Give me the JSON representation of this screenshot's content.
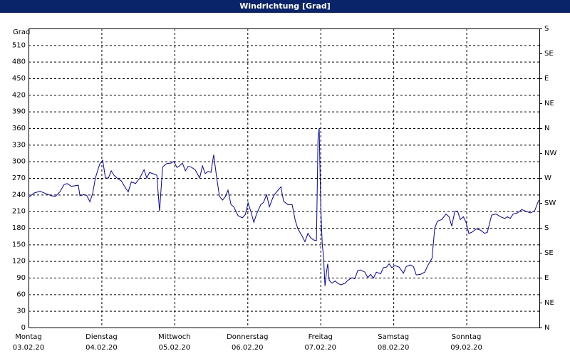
{
  "chart_data": {
    "type": "line",
    "title": "Windrichtung [Grad]",
    "y_label": "Grad",
    "xlim": [
      0,
      168
    ],
    "xticks": [
      {
        "value": 0,
        "label": "Montag",
        "date": "03.02.20"
      },
      {
        "value": 24,
        "label": "Dienstag",
        "date": "04.02.20"
      },
      {
        "value": 48,
        "label": "Mittwoch",
        "date": "05.02.20"
      },
      {
        "value": 72,
        "label": "Donnerstag",
        "date": "06.02.20"
      },
      {
        "value": 96,
        "label": "Freitag",
        "date": "07.02.20"
      },
      {
        "value": 120,
        "label": "Samstag",
        "date": "08.02.20"
      },
      {
        "value": 144,
        "label": "Sonntag",
        "date": "09.02.20"
      }
    ],
    "ylim": [
      0,
      540
    ],
    "yticks": [
      0,
      30,
      60,
      90,
      120,
      150,
      180,
      210,
      240,
      270,
      300,
      330,
      360,
      390,
      420,
      450,
      480,
      510
    ],
    "y2lim": [
      0,
      540
    ],
    "y2ticks": [
      {
        "value": 0,
        "label": "N"
      },
      {
        "value": 45,
        "label": "NE"
      },
      {
        "value": 90,
        "label": "E"
      },
      {
        "value": 135,
        "label": "SE"
      },
      {
        "value": 180,
        "label": "S"
      },
      {
        "value": 225,
        "label": "SW"
      },
      {
        "value": 270,
        "label": "W"
      },
      {
        "value": 315,
        "label": "NW"
      },
      {
        "value": 360,
        "label": "N"
      },
      {
        "value": 405,
        "label": "NE"
      },
      {
        "value": 450,
        "label": "E"
      },
      {
        "value": 495,
        "label": "SE"
      },
      {
        "value": 540,
        "label": "S"
      }
    ],
    "grid": true,
    "series": [
      {
        "color": "#0000c0",
        "x": [
          0,
          1.9,
          3.8,
          5.6,
          7.5,
          8.9,
          10.3,
          11.7,
          12.7,
          14.1,
          16.4,
          16.9,
          18.3,
          19.2,
          20.2,
          21.1,
          22.0,
          23.4,
          24.4,
          25.3,
          26.3,
          27.2,
          28.1,
          29.5,
          30.5,
          31.9,
          32.8,
          33.8,
          35.2,
          36.6,
          38.0,
          38.9,
          39.8,
          40.8,
          42.2,
          43.1,
          44.1,
          45.5,
          46.9,
          47.8,
          48.8,
          49.7,
          50.6,
          51.6,
          52.5,
          53.4,
          54.8,
          56.3,
          57.2,
          58.1,
          59.1,
          60.0,
          60.9,
          61.9,
          62.8,
          63.8,
          64.7,
          65.6,
          66.6,
          67.5,
          68.9,
          70.3,
          71.3,
          72.2,
          73.1,
          74.1,
          75.0,
          76.4,
          77.3,
          78.3,
          79.2,
          80.6,
          81.6,
          83.0,
          83.9,
          85.3,
          86.7,
          87.7,
          88.6,
          90.0,
          90.9,
          91.9,
          92.8,
          93.8,
          94.7,
          95.2,
          95.6,
          96.1,
          96.6,
          97.0,
          97.5,
          98.0,
          98.4,
          98.9,
          99.8,
          100.8,
          101.7,
          102.7,
          104.1,
          105.0,
          106.4,
          107.3,
          108.3,
          109.2,
          110.6,
          111.6,
          112.5,
          113.4,
          114.4,
          115.8,
          116.7,
          117.7,
          118.6,
          119.5,
          120.5,
          121.9,
          123.3,
          124.2,
          125.6,
          126.6,
          127.5,
          128.9,
          130.3,
          131.3,
          132.7,
          133.6,
          134.5,
          135.9,
          137.3,
          138.3,
          139.2,
          140.2,
          141.1,
          142.0,
          143.0,
          143.9,
          144.8,
          145.8,
          147.2,
          148.6,
          150.0,
          150.9,
          152.3,
          153.8,
          155.2,
          156.6,
          157.5,
          158.4,
          159.4,
          160.8,
          162.2,
          163.6,
          165.0,
          166.4,
          167.8
        ],
        "values": [
          235,
          243,
          246,
          242,
          238,
          237,
          245,
          258,
          260,
          255,
          257,
          238,
          240,
          238,
          227,
          242,
          270,
          295,
          302,
          270,
          270,
          283,
          275,
          268,
          265,
          252,
          245,
          263,
          260,
          270,
          285,
          270,
          280,
          278,
          275,
          210,
          290,
          296,
          297,
          300,
          289,
          292,
          297,
          283,
          291,
          290,
          285,
          270,
          292,
          278,
          282,
          280,
          312,
          270,
          237,
          230,
          236,
          248,
          222,
          218,
          202,
          198,
          204,
          225,
          210,
          190,
          205,
          222,
          226,
          240,
          218,
          238,
          245,
          254,
          228,
          222,
          222,
          194,
          178,
          165,
          155,
          170,
          162,
          158,
          157,
          340,
          360,
          220,
          150,
          130,
          75,
          100,
          115,
          85,
          80,
          84,
          80,
          77,
          80,
          85,
          90,
          88,
          103,
          104,
          100,
          90,
          96,
          89,
          100,
          97,
          108,
          109,
          115,
          108,
          112,
          109,
          98,
          110,
          113,
          110,
          95,
          96,
          100,
          112,
          125,
          180,
          192,
          195,
          205,
          200,
          183,
          210,
          210,
          195,
          200,
          190,
          170,
          172,
          178,
          176,
          170,
          172,
          203,
          205,
          200,
          197,
          200,
          197,
          205,
          207,
          213,
          210,
          207,
          210,
          230
        ]
      }
    ]
  }
}
